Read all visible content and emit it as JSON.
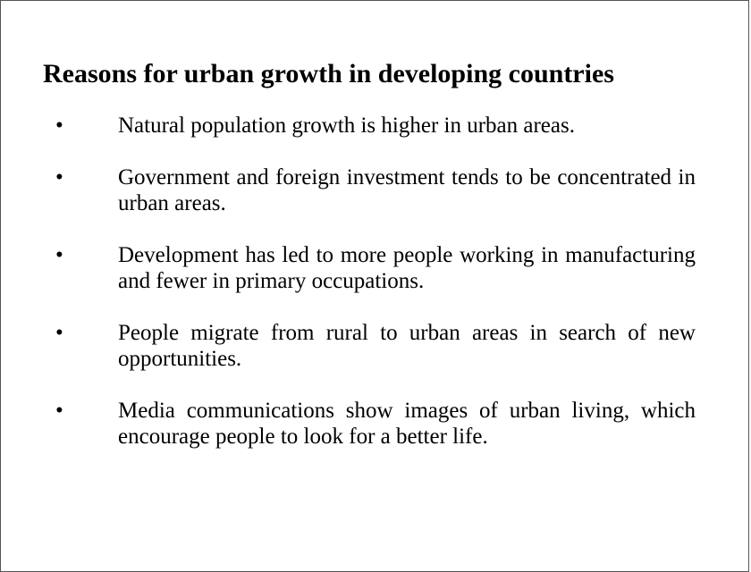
{
  "title": "Reasons for urban growth in developing countries",
  "bullets": [
    "Natural population growth is higher in urban areas.",
    "Government and foreign investment tends to be concentrated in urban areas.",
    "Development has led to more people working in manufacturing and fewer in primary occupations.",
    "People migrate from rural to urban areas in search of new opportunities.",
    "Media communications show images of urban living, which encourage people to look for a better life."
  ]
}
